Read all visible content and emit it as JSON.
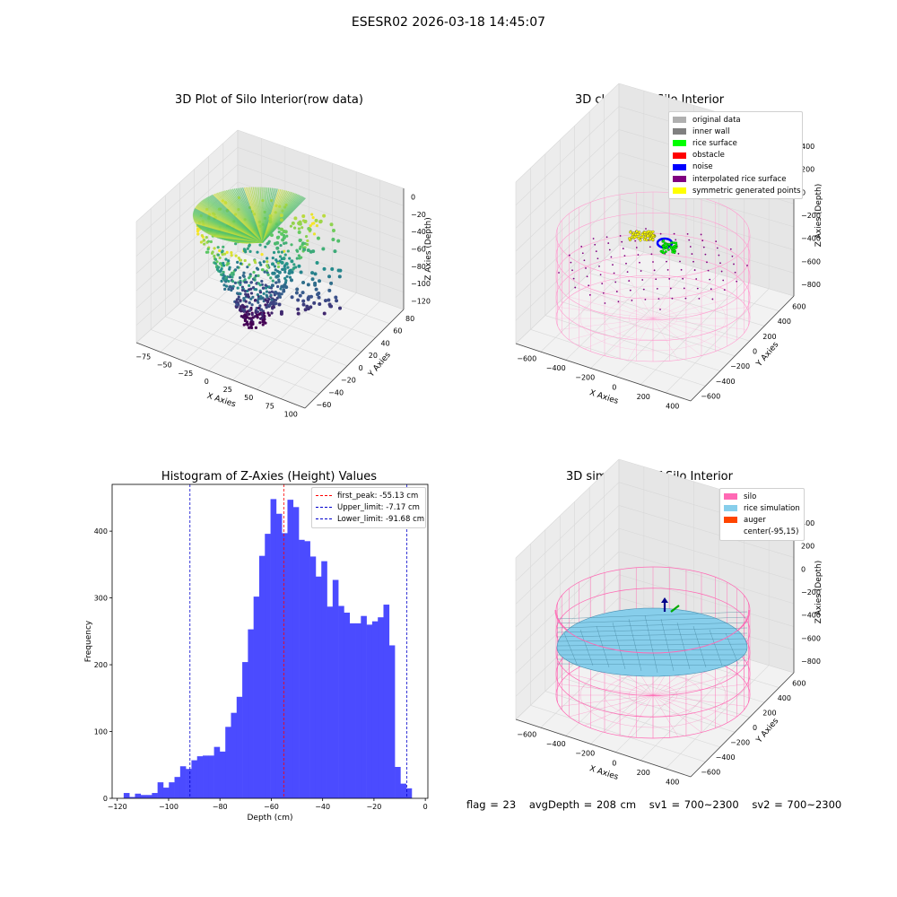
{
  "suptitle": "ESESR02 2026-03-18 14:45:07",
  "chart_data": [
    {
      "type": "scatter",
      "title": "3D Plot of Silo Interior(row data)",
      "xlabel": "X Axies",
      "ylabel": "Y Axies",
      "zlabel": "Z Axies (Depth)",
      "x_ticks": [
        "−75",
        "−50",
        "−25",
        "0",
        "25",
        "50",
        "75",
        "100"
      ],
      "y_ticks": [
        "−60",
        "−40",
        "−20",
        "0",
        "20",
        "40",
        "60",
        "80"
      ],
      "z_ticks": [
        "0",
        "−20",
        "−40",
        "−60",
        "−80",
        "−100",
        "−120"
      ],
      "xlim": [
        -85,
        105
      ],
      "ylim": [
        -65,
        90
      ],
      "zlim": [
        -125,
        5
      ],
      "colormap": "viridis"
    },
    {
      "type": "scatter",
      "title": "3D classify of Silo Interior",
      "xlabel": "X Axies",
      "ylabel": "Y Axies",
      "zlabel": "Z Axies (Depth)",
      "x_ticks": [
        "−600",
        "−400",
        "−200",
        "0",
        "200",
        "400"
      ],
      "y_ticks": [
        "−600",
        "−400",
        "−200",
        "0",
        "200",
        "400",
        "600"
      ],
      "z_ticks": [
        "400",
        "200",
        "0",
        "−200",
        "−400",
        "−600",
        "−800"
      ],
      "legend": [
        {
          "name": "original data",
          "color": "#b0b0b0"
        },
        {
          "name": "inner wall",
          "color": "#808080"
        },
        {
          "name": "rice surface",
          "color": "#00ff00"
        },
        {
          "name": "obstacle",
          "color": "#ff0000"
        },
        {
          "name": "noise",
          "color": "#0000ff"
        },
        {
          "name": "interpolated rice surface",
          "color": "#800080"
        },
        {
          "name": "symmetric generated points",
          "color": "#ffff00"
        }
      ],
      "silo_color": "#ff69b4"
    },
    {
      "type": "bar",
      "title": "Histogram of Z-Axies (Height) Values",
      "xlabel": "Depth (cm)",
      "ylabel": "Frequency",
      "xlim": [
        -122,
        1
      ],
      "ylim": [
        0,
        470
      ],
      "x_ticks": [
        -120,
        -100,
        -80,
        -60,
        -40,
        -20,
        0
      ],
      "y_ticks": [
        0,
        100,
        200,
        300,
        400
      ],
      "bin_start": -117.5,
      "bin_width": 2.2,
      "values": [
        8,
        2,
        7,
        5,
        5,
        8,
        24,
        16,
        24,
        32,
        48,
        44,
        57,
        63,
        64,
        64,
        77,
        70,
        107,
        128,
        152,
        204,
        253,
        302,
        363,
        396,
        448,
        426,
        397,
        447,
        436,
        387,
        385,
        362,
        332,
        355,
        287,
        327,
        288,
        278,
        262,
        262,
        273,
        260,
        265,
        271,
        290,
        229,
        47,
        22,
        15
      ],
      "bar_color": "#4b4bff",
      "vlines": [
        {
          "name": "first_peak: -55.13 cm",
          "x": -55.13,
          "color": "#ff0000"
        },
        {
          "name": "Upper_limit: -7.17 cm",
          "x": -7.17,
          "color": "#0000cc"
        },
        {
          "name": "Lower_limit: -91.68 cm",
          "x": -91.68,
          "color": "#0000cc"
        }
      ],
      "legend_position": "top-right"
    },
    {
      "type": "surface",
      "title": "3D simulation of Silo Interior",
      "xlabel": "X Axies",
      "ylabel": "Y Axies",
      "zlabel": "Z Axies (Depth)",
      "x_ticks": [
        "−600",
        "−400",
        "−200",
        "0",
        "200",
        "400"
      ],
      "y_ticks": [
        "−600",
        "−400",
        "−200",
        "0",
        "200",
        "400",
        "600"
      ],
      "z_ticks": [
        "400",
        "200",
        "0",
        "−200",
        "−400",
        "−600",
        "−800"
      ],
      "legend": [
        {
          "name": "silo",
          "color": "#ff69b4"
        },
        {
          "name": "rice simulation",
          "color": "#87ceeb"
        },
        {
          "name": "auger",
          "color": "#ff4500"
        },
        {
          "name": "center(-95,15)",
          "color": "#ffffff"
        }
      ],
      "surface_color": "#87ceeb"
    }
  ],
  "footer": {
    "flag": "flag = 23",
    "avg_depth": "avgDepth = 208 cm",
    "sv1": "sv1 = 700~2300",
    "sv2": "sv2 = 700~2300"
  }
}
